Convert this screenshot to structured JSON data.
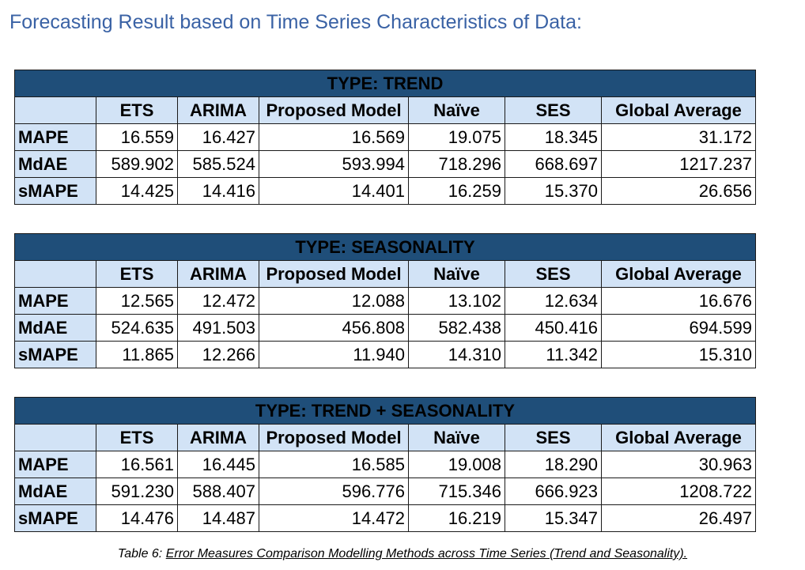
{
  "title": "Forecasting Result based on Time Series Characteristics of Data:",
  "columns": [
    "ETS",
    "ARIMA",
    "Proposed Model",
    "Naïve",
    "SES",
    "Global Average"
  ],
  "tables": [
    {
      "type": "TYPE: TREND",
      "rows": [
        {
          "metric": "MAPE",
          "values": [
            "16.559",
            "16.427",
            "16.569",
            "19.075",
            "18.345",
            "31.172"
          ]
        },
        {
          "metric": "MdAE",
          "values": [
            "589.902",
            "585.524",
            "593.994",
            "718.296",
            "668.697",
            "1217.237"
          ]
        },
        {
          "metric": "sMAPE",
          "values": [
            "14.425",
            "14.416",
            "14.401",
            "16.259",
            "15.370",
            "26.656"
          ]
        }
      ]
    },
    {
      "type": "TYPE: SEASONALITY",
      "rows": [
        {
          "metric": "MAPE",
          "values": [
            "12.565",
            "12.472",
            "12.088",
            "13.102",
            "12.634",
            "16.676"
          ]
        },
        {
          "metric": "MdAE",
          "values": [
            "524.635",
            "491.503",
            "456.808",
            "582.438",
            "450.416",
            "694.599"
          ]
        },
        {
          "metric": "sMAPE",
          "values": [
            "11.865",
            "12.266",
            "11.940",
            "14.310",
            "11.342",
            "15.310"
          ]
        }
      ]
    },
    {
      "type": "TYPE: TREND + SEASONALITY",
      "rows": [
        {
          "metric": "MAPE",
          "values": [
            "16.561",
            "16.445",
            "16.585",
            "19.008",
            "18.290",
            "30.963"
          ]
        },
        {
          "metric": "MdAE",
          "values": [
            "591.230",
            "588.407",
            "596.776",
            "715.346",
            "666.923",
            "1208.722"
          ]
        },
        {
          "metric": "sMAPE",
          "values": [
            "14.476",
            "14.487",
            "14.472",
            "16.219",
            "15.347",
            "26.497"
          ]
        }
      ]
    }
  ],
  "caption": {
    "prefix": "Table 6: ",
    "link_text": "Error Measures Comparison Modelling Methods across Time Series (Trend and Seasonality)."
  }
}
